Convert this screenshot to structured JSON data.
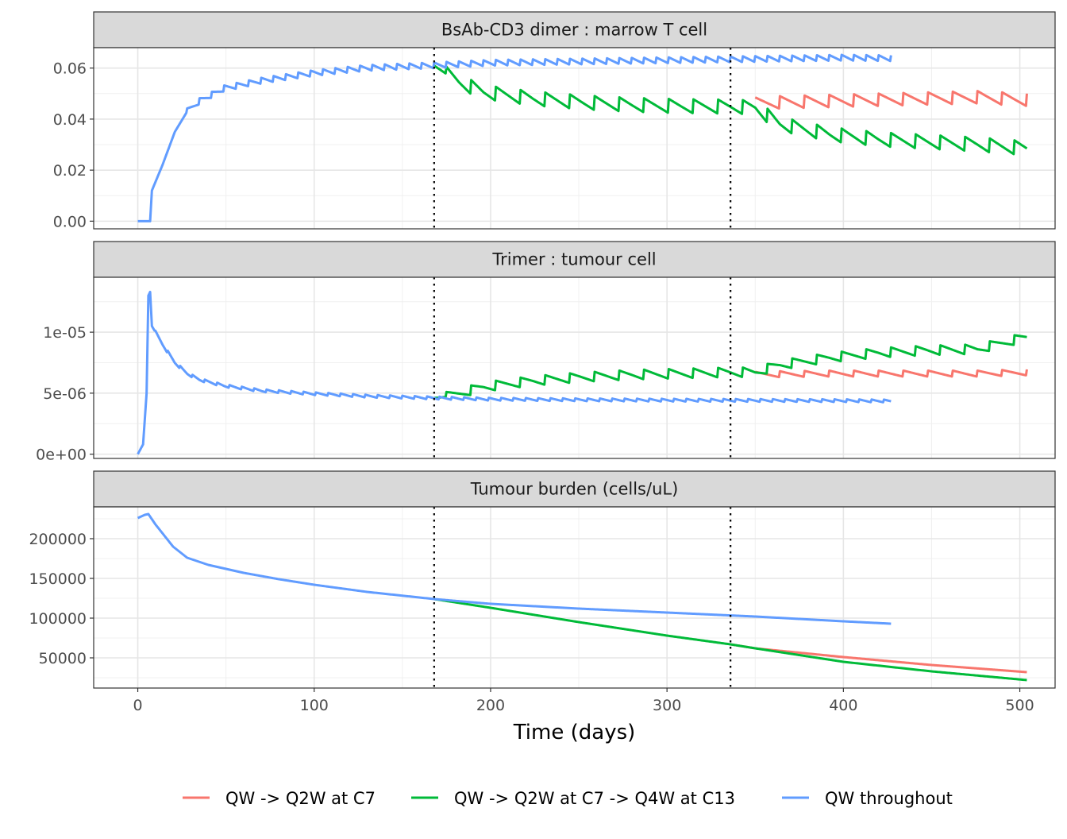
{
  "chart_data": {
    "type": "line",
    "xlabel": "Time (days)",
    "xlim": [
      -25,
      520
    ],
    "x_ticks": [
      0,
      100,
      200,
      300,
      400,
      500
    ],
    "x_tick_labels": [
      "0",
      "100",
      "200",
      "300",
      "400",
      "500"
    ],
    "vlines": [
      168,
      336
    ],
    "legend": {
      "position": "bottom",
      "entries": [
        {
          "label": "QW -> Q2W at C7",
          "color": "#F8766D"
        },
        {
          "label": "QW -> Q2W at C7 -> Q4W at C13",
          "color": "#00BA38"
        },
        {
          "label": "QW throughout",
          "color": "#619CFF"
        }
      ]
    },
    "panels": [
      {
        "strip": "BsAb-CD3 dimer : marrow T cell",
        "ylim": [
          -0.003,
          0.068
        ],
        "y_ticks": [
          0.0,
          0.02,
          0.04,
          0.06
        ],
        "y_tick_labels": [
          "0.00",
          "0.02",
          "0.04",
          "0.06"
        ],
        "series": [
          {
            "name": "QW throughout",
            "color": "#619CFF",
            "points": [
              [
                0,
                0.0
              ],
              [
                7,
                0.0
              ],
              [
                8,
                0.012
              ],
              [
                14,
                0.022
              ],
              [
                21,
                0.035
              ],
              [
                28,
                0.043
              ],
              [
                35,
                0.047
              ],
              [
                49,
                0.052
              ],
              [
                70,
                0.055
              ],
              [
                100,
                0.058
              ],
              [
                130,
                0.06
              ],
              [
                168,
                0.061
              ],
              [
                200,
                0.062
              ],
              [
                250,
                0.0625
              ],
              [
                300,
                0.063
              ],
              [
                350,
                0.0635
              ],
              [
                400,
                0.064
              ],
              [
                427,
                0.0638
              ]
            ],
            "osc_amp": 0.0012,
            "osc_period": 7,
            "osc_start": 28
          },
          {
            "name": "QW -> Q2W at C7 -> Q4W at C13",
            "color": "#00BA38",
            "points": [
              [
                168,
                0.061
              ],
              [
                170,
                0.06
              ],
              [
                182,
                0.0545
              ],
              [
                196,
                0.0505
              ],
              [
                224,
                0.048
              ],
              [
                252,
                0.0465
              ],
              [
                280,
                0.0455
              ],
              [
                308,
                0.045
              ],
              [
                336,
                0.0448
              ],
              [
                350,
                0.0445
              ],
              [
                364,
                0.038
              ],
              [
                392,
                0.034
              ],
              [
                420,
                0.032
              ],
              [
                448,
                0.031
              ],
              [
                476,
                0.03
              ],
              [
                504,
                0.0285
              ]
            ],
            "osc_amp": 0.0028,
            "osc_period": 14,
            "osc_start": 175
          },
          {
            "name": "QW -> Q2W at C7",
            "color": "#F8766D",
            "points": [
              [
                350,
                0.046
              ],
              [
                364,
                0.0465
              ],
              [
                392,
                0.047
              ],
              [
                420,
                0.0475
              ],
              [
                448,
                0.048
              ],
              [
                476,
                0.0485
              ],
              [
                504,
                0.0475
              ]
            ],
            "osc_amp": 0.0025,
            "osc_period": 14,
            "osc_start": 350
          }
        ]
      },
      {
        "strip": "Trimer : tumour cell",
        "ylim": [
          -3.5e-07,
          1.45e-05
        ],
        "y_ticks": [
          0,
          5e-06,
          1e-05
        ],
        "y_tick_labels": [
          "0e+00",
          "5e-06",
          "1e-05"
        ],
        "series": [
          {
            "name": "QW throughout",
            "color": "#619CFF",
            "points": [
              [
                0,
                0.0
              ],
              [
                3,
                8e-07
              ],
              [
                5,
                5e-06
              ],
              [
                6,
                1.3e-05
              ],
              [
                7,
                1.33e-05
              ],
              [
                8,
                1.05e-05
              ],
              [
                14,
                9e-06
              ],
              [
                21,
                7.5e-06
              ],
              [
                28,
                6.6e-06
              ],
              [
                35,
                6.1e-06
              ],
              [
                49,
                5.6e-06
              ],
              [
                70,
                5.2e-06
              ],
              [
                100,
                4.95e-06
              ],
              [
                130,
                4.75e-06
              ],
              [
                168,
                4.6e-06
              ],
              [
                200,
                4.5e-06
              ],
              [
                250,
                4.45e-06
              ],
              [
                300,
                4.42e-06
              ],
              [
                350,
                4.4e-06
              ],
              [
                400,
                4.38e-06
              ],
              [
                427,
                4.35e-06
              ]
            ],
            "osc_amp": 1.2e-07,
            "osc_period": 7,
            "osc_start": 10
          },
          {
            "name": "QW -> Q2W at C7 -> Q4W at C13",
            "color": "#00BA38",
            "points": [
              [
                168,
                4.6e-06
              ],
              [
                175,
                4.7e-06
              ],
              [
                196,
                5.5e-06
              ],
              [
                224,
                6e-06
              ],
              [
                252,
                6.3e-06
              ],
              [
                280,
                6.5e-06
              ],
              [
                308,
                6.6e-06
              ],
              [
                336,
                6.7e-06
              ],
              [
                350,
                6.7e-06
              ],
              [
                364,
                7.3e-06
              ],
              [
                392,
                7.9e-06
              ],
              [
                420,
                8.3e-06
              ],
              [
                448,
                8.5e-06
              ],
              [
                476,
                8.6e-06
              ],
              [
                504,
                9.6e-06
              ]
            ],
            "osc_amp": 4e-07,
            "osc_period": 14,
            "osc_start": 175
          },
          {
            "name": "QW -> Q2W at C7",
            "color": "#F8766D",
            "points": [
              [
                350,
                6.5e-06
              ],
              [
                364,
                6.55e-06
              ],
              [
                392,
                6.6e-06
              ],
              [
                420,
                6.6e-06
              ],
              [
                448,
                6.6e-06
              ],
              [
                476,
                6.6e-06
              ],
              [
                504,
                6.7e-06
              ]
            ],
            "osc_amp": 2.5e-07,
            "osc_period": 14,
            "osc_start": 350
          }
        ]
      },
      {
        "strip": "Tumour burden (cells/uL)",
        "ylim": [
          12000,
          240000
        ],
        "y_ticks": [
          50000,
          100000,
          150000,
          200000
        ],
        "y_tick_labels": [
          "50000",
          "100000",
          "150000",
          "200000"
        ],
        "series": [
          {
            "name": "QW throughout",
            "color": "#619CFF",
            "points": [
              [
                0,
                226000
              ],
              [
                4,
                230000
              ],
              [
                6,
                231000
              ],
              [
                10,
                218000
              ],
              [
                20,
                190000
              ],
              [
                28,
                176000
              ],
              [
                40,
                167000
              ],
              [
                60,
                157000
              ],
              [
                80,
                149000
              ],
              [
                100,
                142000
              ],
              [
                130,
                133000
              ],
              [
                168,
                124000
              ],
              [
                200,
                118000
              ],
              [
                250,
                112000
              ],
              [
                300,
                107000
              ],
              [
                350,
                102000
              ],
              [
                400,
                96000
              ],
              [
                427,
                93000
              ]
            ]
          },
          {
            "name": "QW -> Q2W at C7 -> Q4W at C13",
            "color": "#00BA38",
            "points": [
              [
                168,
                124000
              ],
              [
                200,
                113000
              ],
              [
                250,
                95000
              ],
              [
                300,
                78000
              ],
              [
                336,
                67000
              ],
              [
                350,
                62000
              ],
              [
                400,
                45000
              ],
              [
                450,
                33000
              ],
              [
                504,
                22000
              ]
            ]
          },
          {
            "name": "QW -> Q2W at C7",
            "color": "#F8766D",
            "points": [
              [
                336,
                67000
              ],
              [
                350,
                62000
              ],
              [
                400,
                51000
              ],
              [
                450,
                41000
              ],
              [
                504,
                32000
              ]
            ]
          }
        ]
      }
    ]
  }
}
